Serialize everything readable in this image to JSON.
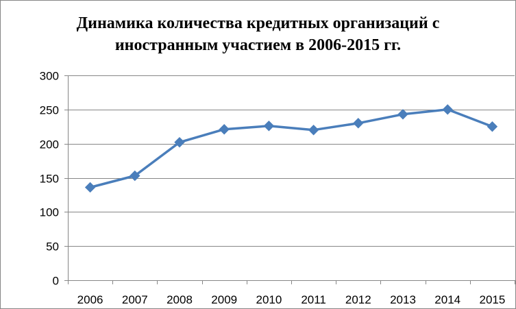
{
  "chart_data": {
    "type": "line",
    "title_lines": [
      "Динамика количества кредитных организаций с",
      "иностранным участием в 2006-2015 гг."
    ],
    "xlabel": "",
    "ylabel": "",
    "categories": [
      "2006",
      "2007",
      "2008",
      "2009",
      "2010",
      "2011",
      "2012",
      "2013",
      "2014",
      "2015"
    ],
    "series": [
      {
        "values": [
          136,
          153,
          202,
          221,
          226,
          220,
          230,
          243,
          250,
          225
        ],
        "color": "#4a7ebb",
        "marker": "diamond"
      }
    ],
    "ylim": [
      0,
      300
    ],
    "yticks": [
      "0",
      "50",
      "100",
      "150",
      "200",
      "250",
      "300"
    ],
    "grid": "horizontal",
    "legend": "none"
  }
}
